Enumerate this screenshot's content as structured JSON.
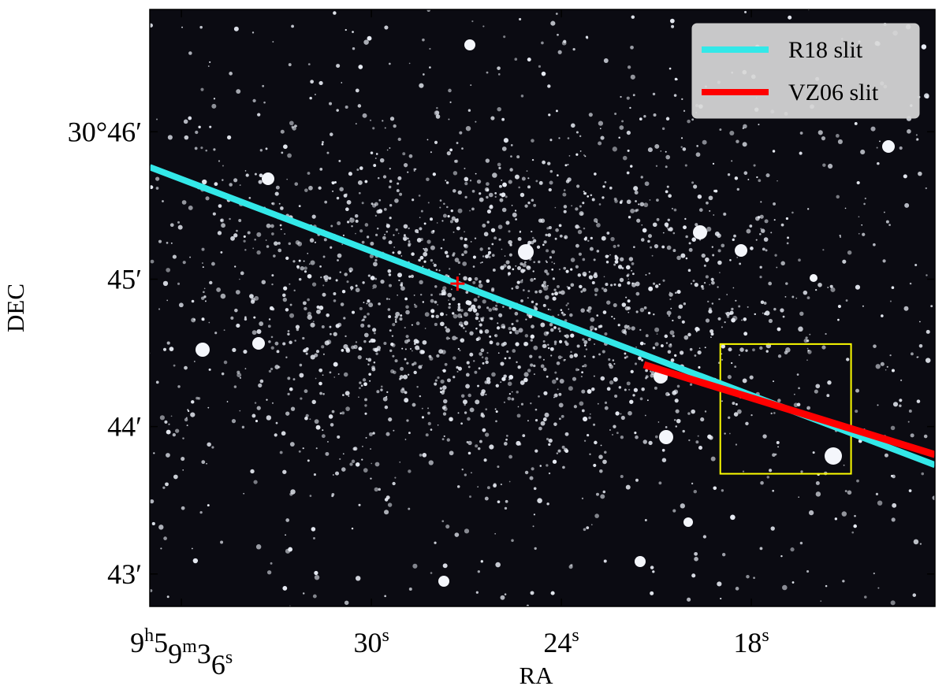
{
  "chart_data": {
    "type": "image",
    "xlabel": "RA",
    "ylabel": "DEC",
    "xlim": [
      37.0,
      12.2
    ],
    "ylim": [
      42.78,
      46.83
    ],
    "xticks": [
      {
        "value": 36,
        "label": "9h59m36s"
      },
      {
        "value": 30,
        "label": "30s"
      },
      {
        "value": 24,
        "label": "24s"
      },
      {
        "value": 18,
        "label": "18s"
      }
    ],
    "yticks": [
      {
        "value": 46,
        "label": "30°46′"
      },
      {
        "value": 45,
        "label": "45′"
      },
      {
        "value": 44,
        "label": "44′"
      },
      {
        "value": 43,
        "label": "43′"
      }
    ],
    "series": [
      {
        "name": "R18 slit",
        "color": "#33e8e8",
        "x": [
          37.0,
          12.2
        ],
        "values": [
          45.76,
          43.74
        ]
      },
      {
        "name": "VZ06 slit",
        "color": "#ff0000",
        "x": [
          21.39,
          12.2
        ],
        "values": [
          44.42,
          43.81
        ]
      }
    ],
    "markers": [
      {
        "x": 27.28,
        "y": 44.97,
        "color": "#ff0000"
      }
    ],
    "box": {
      "x": [
        18.98,
        14.85
      ],
      "y": [
        44.56,
        43.68
      ],
      "color": "#ffff00"
    },
    "legend": "upper right"
  }
}
